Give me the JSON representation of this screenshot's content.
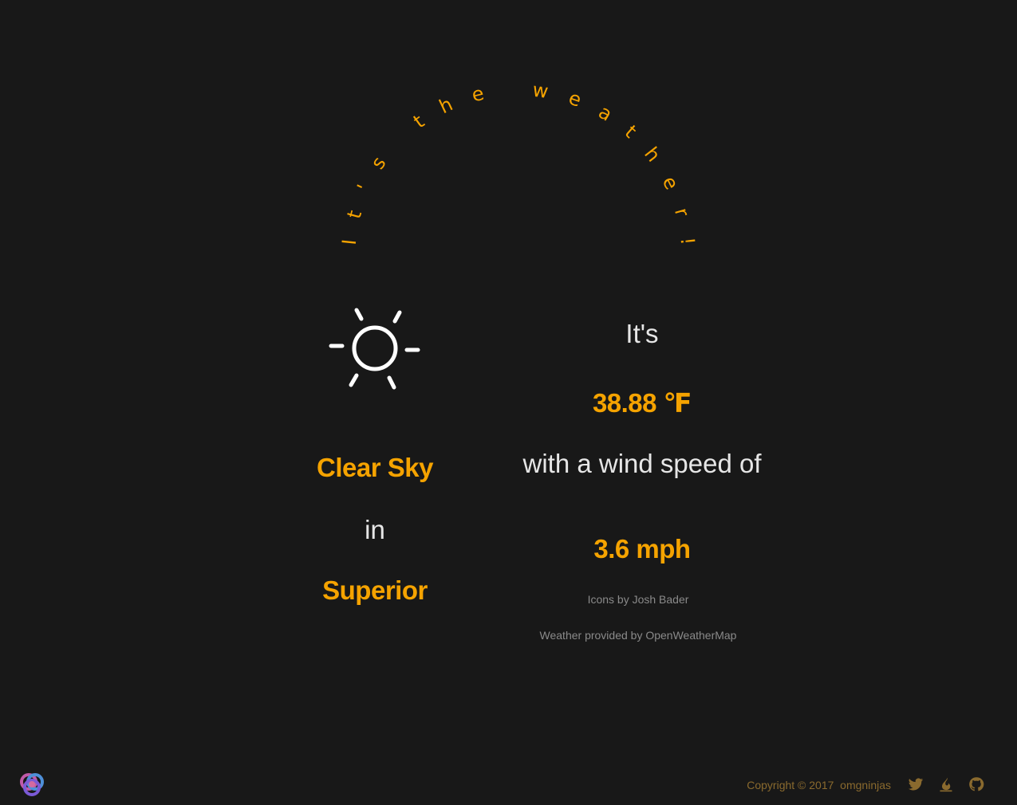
{
  "header": {
    "arc_title": "It's the weather!"
  },
  "weather": {
    "icon": "sun-icon",
    "condition": "Clear Sky",
    "in_word": "in",
    "city": "Superior",
    "its_word": "It's",
    "temperature": "38.88 ℉",
    "wind_prefix": "with a wind speed of",
    "wind_speed": "3.6 mph"
  },
  "credits": {
    "icons": "Icons by Josh Bader",
    "weather": "Weather provided by OpenWeatherMap"
  },
  "footer": {
    "copyright": "Copyright © 2017  omgninjas",
    "logo_icon": "omgninjas-logo-icon",
    "social": [
      {
        "name": "twitter-icon"
      },
      {
        "name": "flame-icon"
      },
      {
        "name": "github-icon"
      }
    ]
  },
  "colors": {
    "background": "#181818",
    "accent": "#f5a300",
    "text": "#e6e6e6",
    "muted": "#8a8a8a"
  }
}
